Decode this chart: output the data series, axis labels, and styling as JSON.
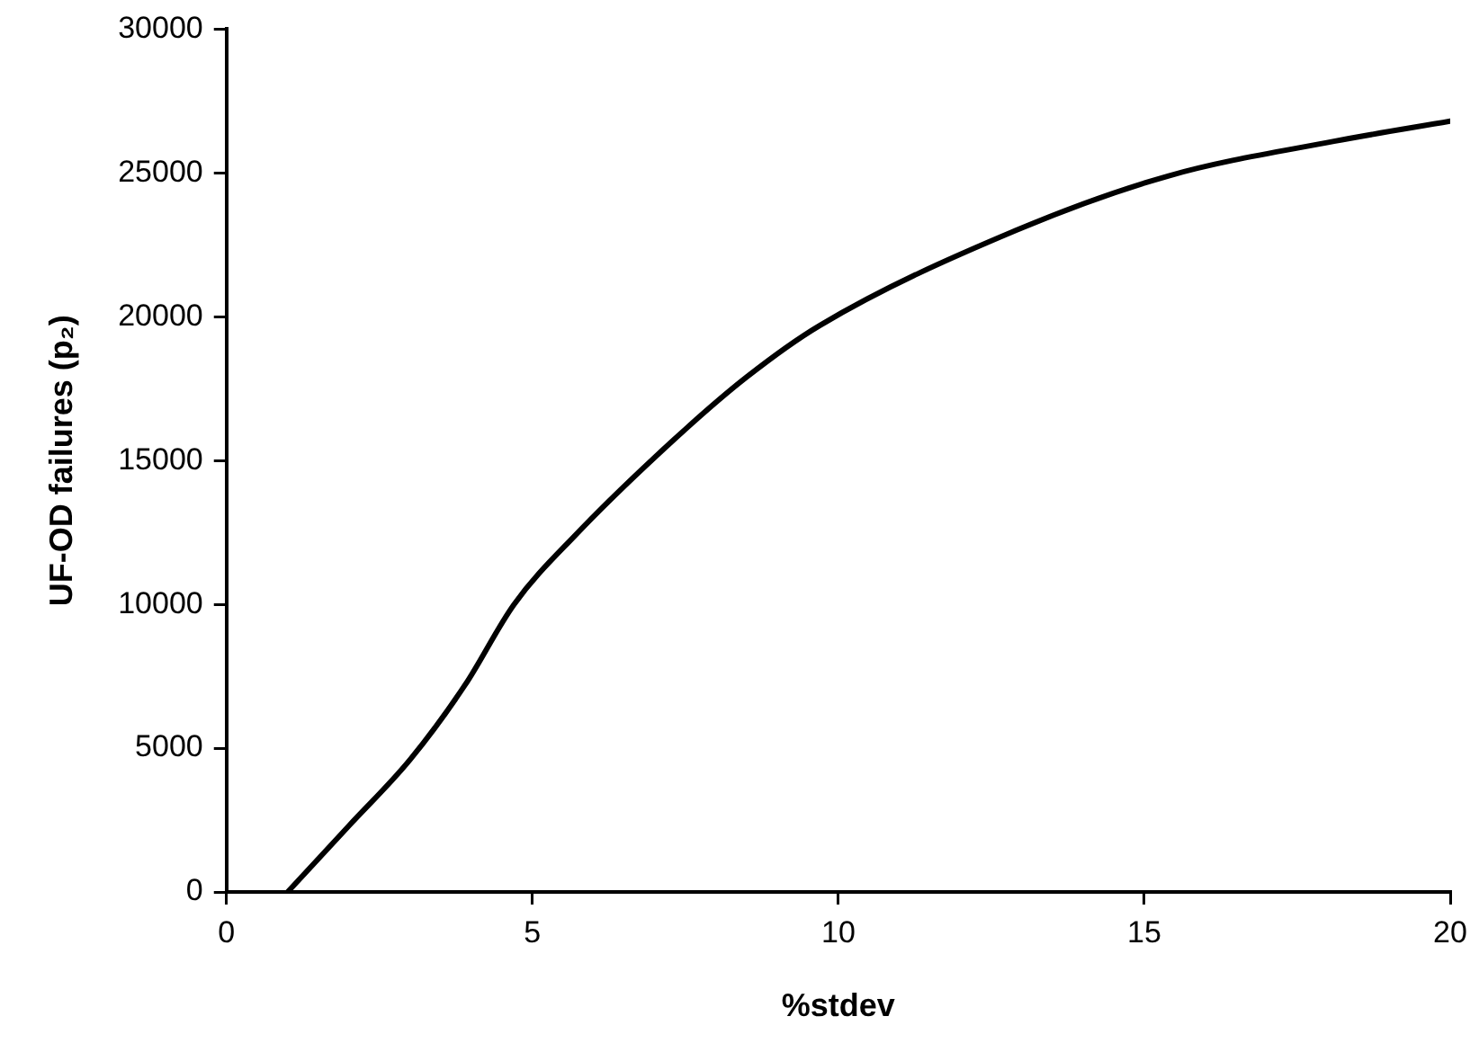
{
  "chart_data": {
    "type": "line",
    "xlabel": "%stdev",
    "ylabel": "UF-OD failures (p₂)",
    "series": [
      {
        "color": "#000000",
        "x": [
          1,
          2,
          3,
          3.9,
          4.7,
          5.7,
          7.3,
          8.5,
          9.7,
          12.9,
          15.4,
          18.1,
          20
        ],
        "values": [
          0,
          2300,
          4600,
          7200,
          10000,
          12400,
          15700,
          17900,
          19700,
          23000,
          24900,
          26100,
          26800
        ]
      }
    ],
    "xlim": [
      0,
      20
    ],
    "xticks": [
      0,
      5,
      10,
      15,
      20
    ],
    "ylim": [
      0,
      30000
    ],
    "yticks": [
      0,
      5000,
      10000,
      15000,
      20000,
      25000,
      30000
    ],
    "grid": false,
    "legend": false,
    "marker": "none",
    "line_style": "solid"
  }
}
